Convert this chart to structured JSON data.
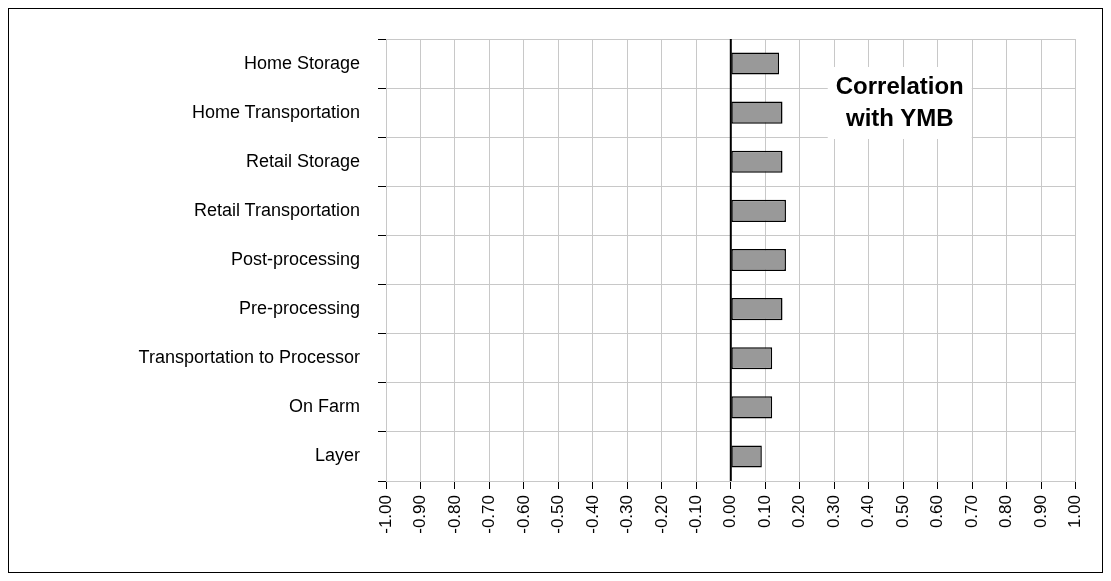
{
  "chart_data": {
    "type": "bar",
    "orientation": "horizontal",
    "title": "Correlation with YMB",
    "categories": [
      "Home Storage",
      "Home Transportation",
      "Retail Storage",
      "Retail Transportation",
      "Post-processing",
      "Pre-processing",
      "Transportation to Processor",
      "On Farm",
      "Layer"
    ],
    "values": [
      0.14,
      0.15,
      0.15,
      0.16,
      0.16,
      0.15,
      0.12,
      0.12,
      0.09
    ],
    "color": "#999999",
    "xlim": [
      -1,
      1
    ],
    "xticks": [
      {
        "value": -1,
        "label": "-1.00"
      },
      {
        "value": -0.9,
        "label": "-0.90"
      },
      {
        "value": -0.8,
        "label": "-0.80"
      },
      {
        "value": -0.7,
        "label": "-0.70"
      },
      {
        "value": -0.6,
        "label": "-0.60"
      },
      {
        "value": -0.5,
        "label": "-0.50"
      },
      {
        "value": -0.4,
        "label": "-0.40"
      },
      {
        "value": -0.3,
        "label": "-0.30"
      },
      {
        "value": -0.2,
        "label": "-0.20"
      },
      {
        "value": -0.1,
        "label": "-0.10"
      },
      {
        "value": 0,
        "label": "0.00"
      },
      {
        "value": 0.1,
        "label": "0.10"
      },
      {
        "value": 0.2,
        "label": "0.20"
      },
      {
        "value": 0.3,
        "label": "0.30"
      },
      {
        "value": 0.4,
        "label": "0.40"
      },
      {
        "value": 0.5,
        "label": "0.50"
      },
      {
        "value": 0.6,
        "label": "0.60"
      },
      {
        "value": 0.7,
        "label": "0.70"
      },
      {
        "value": 0.8,
        "label": "0.80"
      },
      {
        "value": 0.9,
        "label": "0.90"
      },
      {
        "value": 1,
        "label": "1.00"
      }
    ],
    "grid": true,
    "legend": false
  }
}
